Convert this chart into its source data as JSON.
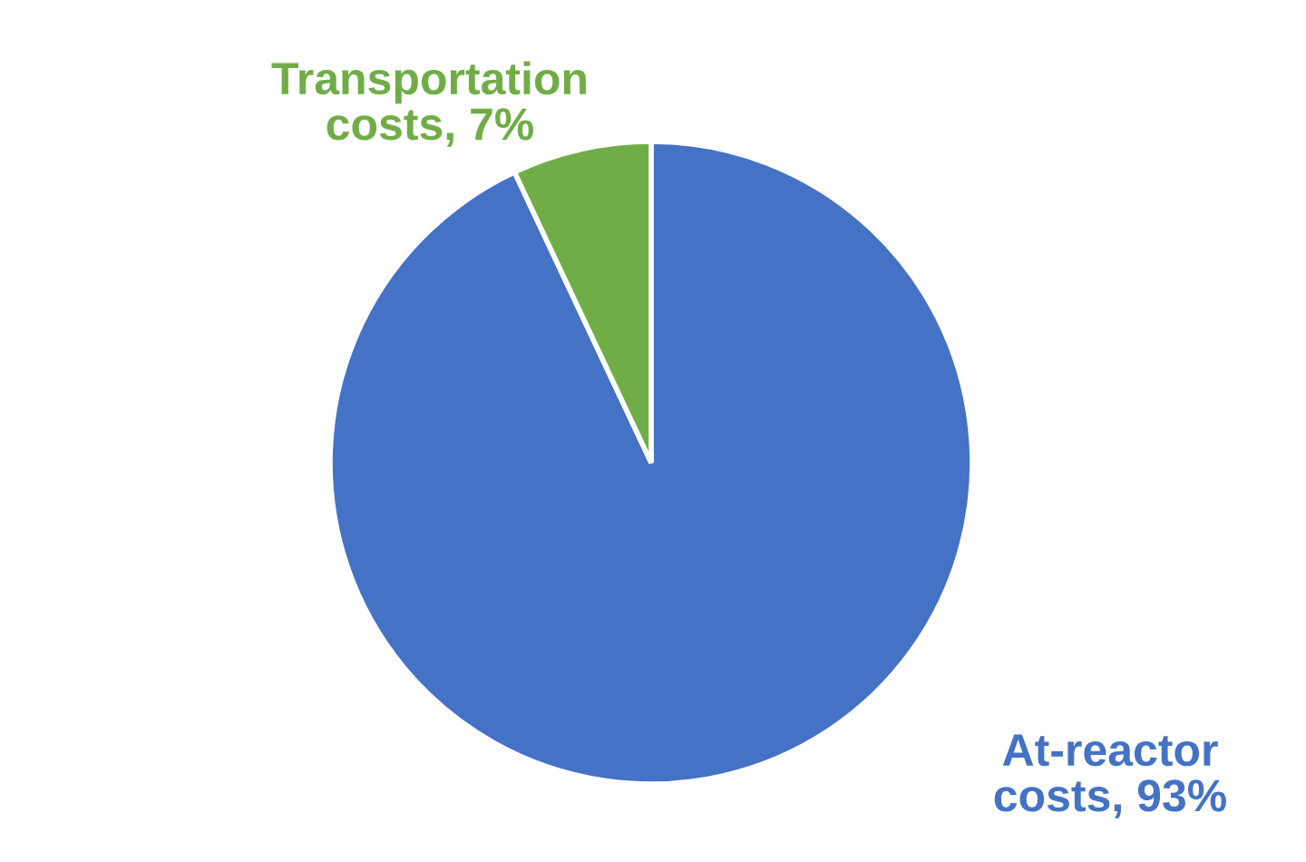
{
  "chart_data": {
    "type": "pie",
    "categories": [
      "At-reactor costs",
      "Transportation costs"
    ],
    "values": [
      93,
      7
    ],
    "colors": [
      "#4472c4",
      "#70ad47"
    ],
    "value_labels": [
      "93%",
      "7%"
    ],
    "legend": false
  }
}
